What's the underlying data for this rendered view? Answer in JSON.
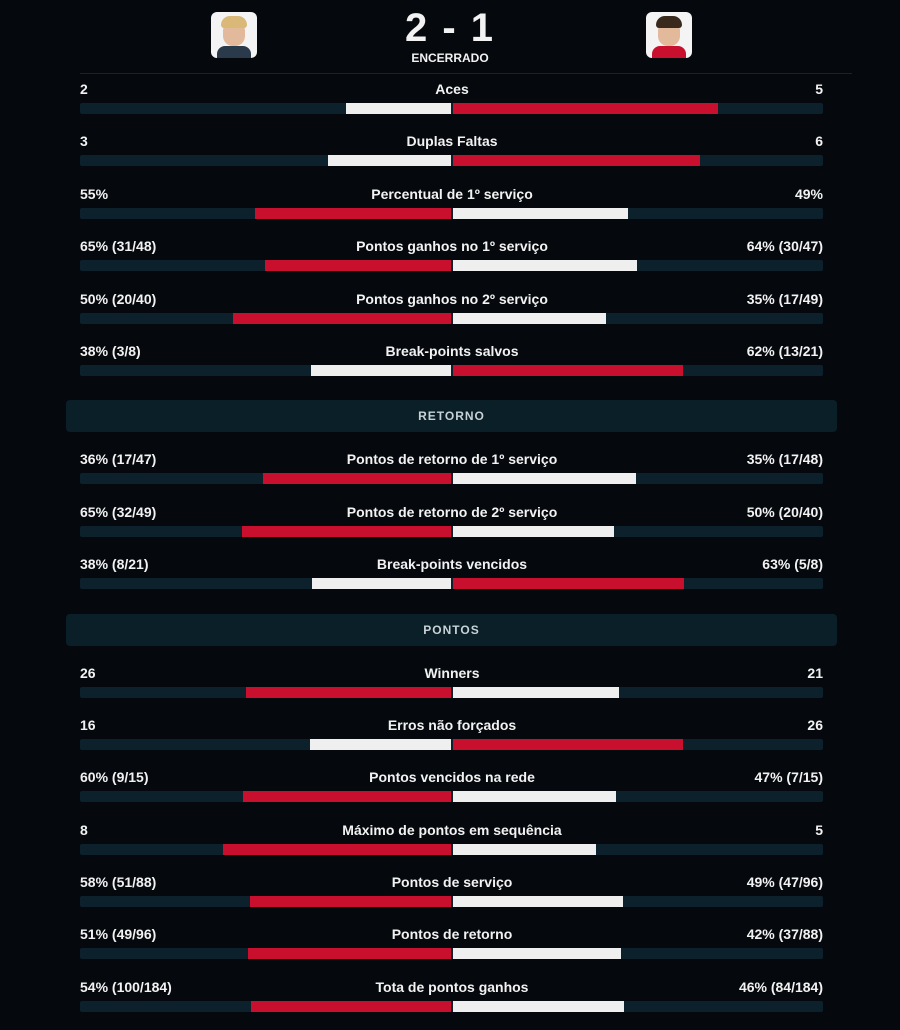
{
  "header": {
    "score": "2 - 1",
    "status": "ENCERRADO"
  },
  "sections": [
    {
      "rows": [
        {
          "label": "Aces",
          "home": "2",
          "away": "5"
        },
        {
          "label": "Duplas Faltas",
          "home": "3",
          "away": "6"
        },
        {
          "label": "Percentual de 1º serviço",
          "home": "55%",
          "away": "49%"
        },
        {
          "label": "Pontos ganhos no 1º serviço",
          "home": "65% (31/48)",
          "away": "64% (30/47)"
        },
        {
          "label": "Pontos ganhos no 2º serviço",
          "home": "50% (20/40)",
          "away": "35% (17/49)"
        },
        {
          "label": "Break-points salvos",
          "home": "38% (3/8)",
          "away": "62% (13/21)"
        }
      ]
    },
    {
      "title": "RETORNO",
      "rows": [
        {
          "label": "Pontos de retorno de 1º serviço",
          "home": "36% (17/47)",
          "away": "35% (17/48)"
        },
        {
          "label": "Pontos de retorno de 2º serviço",
          "home": "65% (32/49)",
          "away": "50% (20/40)"
        },
        {
          "label": "Break-points vencidos",
          "home": "38% (8/21)",
          "away": "63% (5/8)"
        }
      ]
    },
    {
      "title": "PONTOS",
      "rows": [
        {
          "label": "Winners",
          "home": "26",
          "away": "21"
        },
        {
          "label": "Erros não forçados",
          "home": "16",
          "away": "26"
        },
        {
          "label": "Pontos vencidos na rede",
          "home": "60% (9/15)",
          "away": "47% (7/15)"
        },
        {
          "label": "Máximo de pontos em sequência",
          "home": "8",
          "away": "5"
        },
        {
          "label": "Pontos de serviço",
          "home": "58% (51/88)",
          "away": "49% (47/96)"
        },
        {
          "label": "Pontos de retorno",
          "home": "51% (49/96)",
          "away": "42% (37/88)"
        },
        {
          "label": "Tota de pontos ganhos",
          "home": "54% (100/184)",
          "away": "46% (84/184)"
        }
      ]
    }
  ]
}
